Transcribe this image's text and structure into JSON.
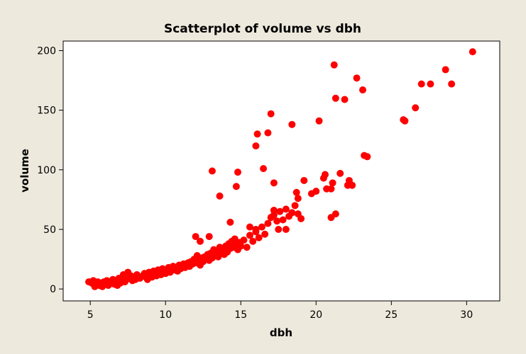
{
  "chart_data": {
    "type": "scatter",
    "title": "Scatterplot of volume vs dbh",
    "xlabel": "dbh",
    "ylabel": "volume",
    "xlim": [
      3.2,
      32.2
    ],
    "ylim": [
      -10,
      208
    ],
    "xticks": [
      5,
      10,
      15,
      20,
      25,
      30
    ],
    "yticks": [
      0,
      50,
      100,
      150,
      200
    ],
    "xtick_labels": [
      "5",
      "10",
      "15",
      "20",
      "25",
      "30"
    ],
    "ytick_labels": [
      "0",
      "50",
      "100",
      "150",
      "200"
    ],
    "grid": false,
    "marker_color": "#ff0000",
    "points": [
      [
        4.9,
        6
      ],
      [
        5.1,
        5
      ],
      [
        5.2,
        7
      ],
      [
        5.3,
        2
      ],
      [
        5.4,
        4
      ],
      [
        5.5,
        6
      ],
      [
        5.6,
        3
      ],
      [
        5.7,
        5
      ],
      [
        5.8,
        2
      ],
      [
        5.9,
        6
      ],
      [
        6.0,
        4
      ],
      [
        6.1,
        7
      ],
      [
        6.2,
        3
      ],
      [
        6.3,
        6
      ],
      [
        6.4,
        5
      ],
      [
        6.5,
        8
      ],
      [
        6.6,
        4
      ],
      [
        6.7,
        6
      ],
      [
        6.8,
        3
      ],
      [
        6.9,
        9
      ],
      [
        7.0,
        5
      ],
      [
        7.1,
        7
      ],
      [
        7.2,
        12
      ],
      [
        7.3,
        6
      ],
      [
        7.4,
        8
      ],
      [
        7.5,
        14
      ],
      [
        7.6,
        9
      ],
      [
        7.7,
        11
      ],
      [
        7.8,
        7
      ],
      [
        7.9,
        10
      ],
      [
        8.0,
        8
      ],
      [
        8.1,
        12
      ],
      [
        8.2,
        10
      ],
      [
        8.3,
        9
      ],
      [
        8.5,
        11
      ],
      [
        8.6,
        13
      ],
      [
        8.7,
        10
      ],
      [
        8.8,
        8
      ],
      [
        8.9,
        14
      ],
      [
        9.0,
        12
      ],
      [
        9.1,
        10
      ],
      [
        9.2,
        15
      ],
      [
        9.3,
        13
      ],
      [
        9.4,
        11
      ],
      [
        9.5,
        16
      ],
      [
        9.6,
        14
      ],
      [
        9.7,
        12
      ],
      [
        9.8,
        17
      ],
      [
        9.9,
        15
      ],
      [
        10.0,
        13
      ],
      [
        10.1,
        16
      ],
      [
        10.2,
        18
      ],
      [
        10.3,
        14
      ],
      [
        10.4,
        17
      ],
      [
        10.5,
        19
      ],
      [
        10.6,
        16
      ],
      [
        10.7,
        18
      ],
      [
        10.8,
        15
      ],
      [
        10.9,
        20
      ],
      [
        11.0,
        17
      ],
      [
        11.1,
        19
      ],
      [
        11.2,
        21
      ],
      [
        11.3,
        18
      ],
      [
        11.4,
        20
      ],
      [
        11.5,
        22
      ],
      [
        11.6,
        19
      ],
      [
        11.7,
        23
      ],
      [
        11.8,
        21
      ],
      [
        11.9,
        25
      ],
      [
        12.0,
        22
      ],
      [
        12.1,
        28
      ],
      [
        12.2,
        24
      ],
      [
        12.3,
        20
      ],
      [
        12.4,
        26
      ],
      [
        12.5,
        23
      ],
      [
        12.6,
        27
      ],
      [
        12.7,
        25
      ],
      [
        12.8,
        29
      ],
      [
        12.9,
        24
      ],
      [
        13.0,
        30
      ],
      [
        13.1,
        26
      ],
      [
        13.2,
        33
      ],
      [
        13.3,
        28
      ],
      [
        13.4,
        31
      ],
      [
        13.5,
        27
      ],
      [
        13.6,
        35
      ],
      [
        13.7,
        30
      ],
      [
        13.8,
        32
      ],
      [
        13.9,
        29
      ],
      [
        14.0,
        36
      ],
      [
        14.1,
        31
      ],
      [
        14.2,
        38
      ],
      [
        14.3,
        34
      ],
      [
        14.4,
        40
      ],
      [
        14.5,
        35
      ],
      [
        14.6,
        42
      ],
      [
        14.7,
        37
      ],
      [
        14.8,
        33
      ],
      [
        14.9,
        39
      ],
      [
        15.0,
        36
      ],
      [
        15.2,
        41
      ],
      [
        15.4,
        35
      ],
      [
        15.6,
        45
      ],
      [
        15.8,
        40
      ],
      [
        16.0,
        48
      ],
      [
        16.2,
        43
      ],
      [
        16.4,
        52
      ],
      [
        16.6,
        46
      ],
      [
        16.8,
        55
      ],
      [
        17.0,
        60
      ],
      [
        17.2,
        62
      ],
      [
        17.4,
        57
      ],
      [
        17.6,
        65
      ],
      [
        17.8,
        58
      ],
      [
        18.0,
        67
      ],
      [
        18.2,
        61
      ],
      [
        18.4,
        64
      ],
      [
        18.6,
        70
      ],
      [
        18.8,
        63
      ],
      [
        19.0,
        59
      ],
      [
        12.0,
        44
      ],
      [
        12.3,
        40
      ],
      [
        12.9,
        44
      ],
      [
        13.1,
        99
      ],
      [
        13.6,
        78
      ],
      [
        14.3,
        56
      ],
      [
        14.8,
        98
      ],
      [
        14.7,
        86
      ],
      [
        15.6,
        52
      ],
      [
        16.0,
        50
      ],
      [
        16.1,
        130
      ],
      [
        16.0,
        120
      ],
      [
        16.5,
        101
      ],
      [
        16.8,
        131
      ],
      [
        17.0,
        147
      ],
      [
        17.2,
        89
      ],
      [
        17.2,
        66
      ],
      [
        17.5,
        50
      ],
      [
        18.0,
        50
      ],
      [
        18.4,
        138
      ],
      [
        18.7,
        81
      ],
      [
        18.8,
        76
      ],
      [
        19.2,
        91
      ],
      [
        19.7,
        80
      ],
      [
        20.0,
        82
      ],
      [
        20.2,
        141
      ],
      [
        20.5,
        93
      ],
      [
        20.6,
        96
      ],
      [
        20.7,
        84
      ],
      [
        21.0,
        84
      ],
      [
        21.1,
        89
      ],
      [
        21.0,
        60
      ],
      [
        21.3,
        63
      ],
      [
        21.2,
        188
      ],
      [
        21.3,
        160
      ],
      [
        21.6,
        97
      ],
      [
        21.9,
        159
      ],
      [
        22.1,
        87
      ],
      [
        22.2,
        91
      ],
      [
        22.4,
        87
      ],
      [
        22.7,
        177
      ],
      [
        23.1,
        167
      ],
      [
        23.2,
        112
      ],
      [
        23.4,
        111
      ],
      [
        25.8,
        142
      ],
      [
        25.9,
        141
      ],
      [
        26.6,
        152
      ],
      [
        27.0,
        172
      ],
      [
        27.6,
        172
      ],
      [
        28.6,
        184
      ],
      [
        29.0,
        172
      ],
      [
        30.4,
        199
      ]
    ]
  }
}
